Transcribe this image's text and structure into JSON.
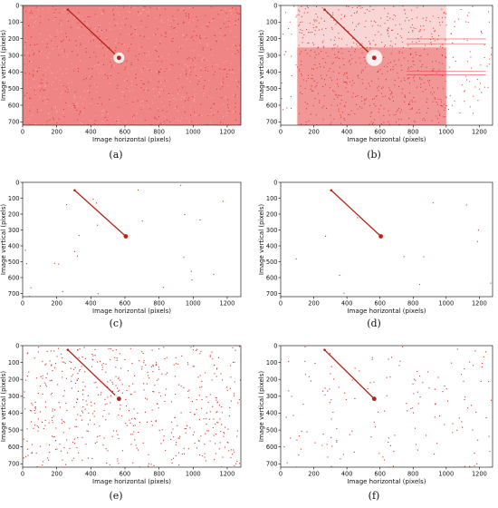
{
  "figure": {
    "panel_labels": [
      "(a)",
      "(b)",
      "(c)",
      "(d)",
      "(e)",
      "(f)"
    ]
  },
  "axes_common": {
    "xlabel": "Image horizontal (pixels)",
    "ylabel": "Image vertical (pixels)",
    "x_ticks": [
      0,
      200,
      400,
      600,
      800,
      1000,
      1200
    ],
    "y_ticks": [
      0,
      100,
      200,
      300,
      400,
      500,
      600,
      700
    ],
    "xlim": [
      0,
      1280
    ],
    "ylim": [
      720,
      0
    ]
  },
  "colors": {
    "dot": "#d9342b",
    "dense_fill": "#f08585",
    "line": "#b52418",
    "axis": "#000000"
  },
  "chart_data": [
    {
      "id": "a",
      "type": "scatter",
      "label": "(a)",
      "xlabel": "Image horizontal (pixels)",
      "ylabel": "Image vertical (pixels)",
      "xlim": [
        0,
        1280
      ],
      "ylim": [
        720,
        0
      ],
      "grid": false,
      "background": "dense uniform red noise",
      "noise_density": 1.0,
      "line": {
        "x": [
          265,
          565
        ],
        "y": [
          25,
          315
        ]
      },
      "endpoint": {
        "x": 565,
        "y": 315
      }
    },
    {
      "id": "b",
      "type": "scatter",
      "label": "(b)",
      "xlabel": "Image horizontal (pixels)",
      "ylabel": "Image vertical (pixels)",
      "xlim": [
        0,
        1280
      ],
      "ylim": [
        720,
        0
      ],
      "grid": false,
      "background": "dense red region between x 100 and 1000, sparse elsewhere",
      "noise_density": 0.65,
      "dense_region": {
        "x": [
          100,
          1000
        ]
      },
      "line": {
        "x": [
          265,
          565
        ],
        "y": [
          25,
          315
        ]
      },
      "endpoint": {
        "x": 565,
        "y": 315
      }
    },
    {
      "id": "c",
      "type": "scatter",
      "label": "(c)",
      "xlabel": "Image horizontal (pixels)",
      "ylabel": "Image vertical (pixels)",
      "xlim": [
        0,
        1280
      ],
      "ylim": [
        720,
        0
      ],
      "grid": false,
      "background": "nearly empty",
      "noise_density": 0.01,
      "line": {
        "x": [
          305,
          605
        ],
        "y": [
          50,
          340
        ]
      },
      "endpoint": {
        "x": 605,
        "y": 340
      }
    },
    {
      "id": "d",
      "type": "scatter",
      "label": "(d)",
      "xlabel": "Image horizontal (pixels)",
      "ylabel": "Image vertical (pixels)",
      "xlim": [
        0,
        1280
      ],
      "ylim": [
        720,
        0
      ],
      "grid": false,
      "background": "nearly empty",
      "noise_density": 0.005,
      "line": {
        "x": [
          305,
          605
        ],
        "y": [
          50,
          340
        ]
      },
      "endpoint": {
        "x": 605,
        "y": 340
      }
    },
    {
      "id": "e",
      "type": "scatter",
      "label": "(e)",
      "xlabel": "Image horizontal (pixels)",
      "ylabel": "Image vertical (pixels)",
      "xlim": [
        0,
        1280
      ],
      "ylim": [
        720,
        0
      ],
      "grid": false,
      "background": "scattered red speckle noise",
      "noise_density": 0.22,
      "line": {
        "x": [
          265,
          565
        ],
        "y": [
          25,
          315
        ]
      },
      "endpoint": {
        "x": 565,
        "y": 315
      }
    },
    {
      "id": "f",
      "type": "scatter",
      "label": "(f)",
      "xlabel": "Image horizontal (pixels)",
      "ylabel": "Image vertical (pixels)",
      "xlim": [
        0,
        1280
      ],
      "ylim": [
        720,
        0
      ],
      "grid": false,
      "background": "sparse red speckle noise",
      "noise_density": 0.06,
      "line": {
        "x": [
          265,
          565
        ],
        "y": [
          25,
          315
        ]
      },
      "endpoint": {
        "x": 565,
        "y": 315
      }
    }
  ]
}
